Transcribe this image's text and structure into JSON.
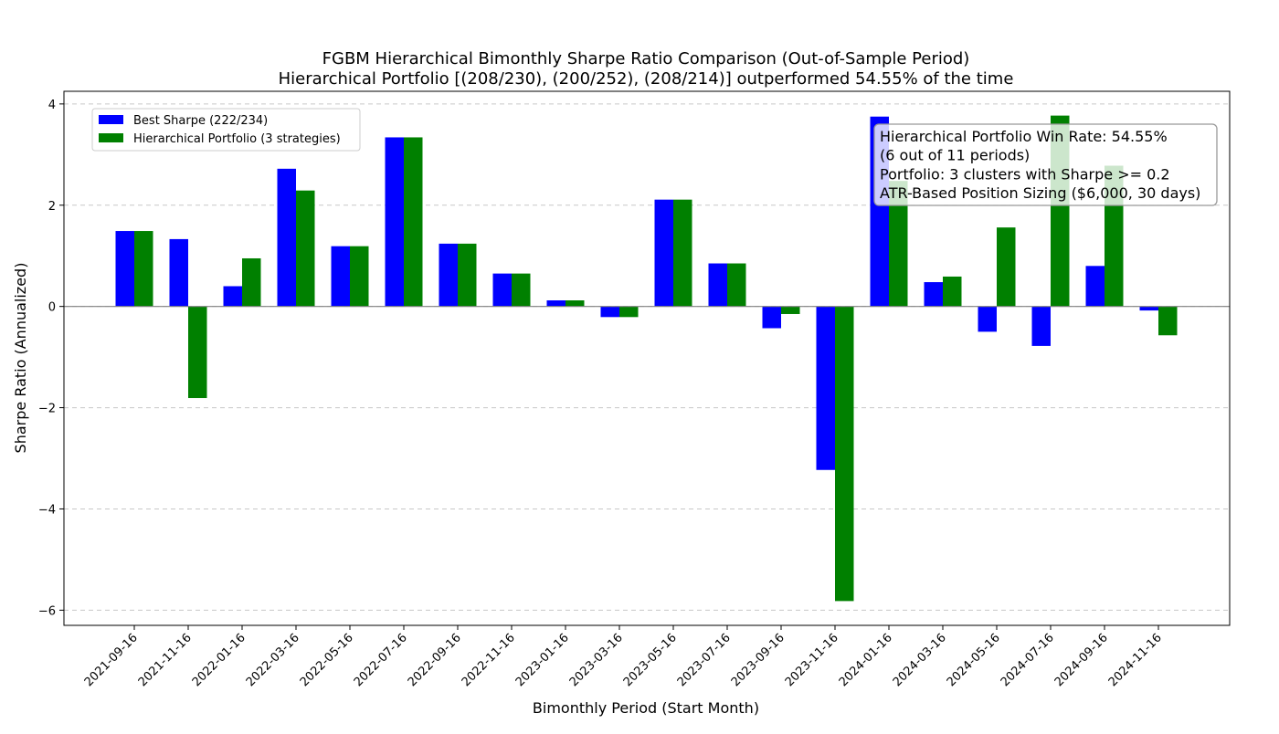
{
  "chart_data": {
    "type": "bar",
    "title": "FGBM Hierarchical Bimonthly Sharpe Ratio Comparison (Out-of-Sample Period)",
    "subtitle": "Hierarchical Portfolio [(208/230), (200/252), (208/214)] outperformed 54.55% of the time",
    "xlabel": "Bimonthly Period (Start Month)",
    "ylabel": "Sharpe Ratio (Annualized)",
    "ylim": [
      -6.3,
      4.25
    ],
    "yticks": [
      -6,
      -4,
      -2,
      0,
      2,
      4
    ],
    "grid": "horizontal-dashed",
    "legend_position": "top-left",
    "categories": [
      "2021-09-16",
      "2021-11-16",
      "2022-01-16",
      "2022-03-16",
      "2022-05-16",
      "2022-07-16",
      "2022-09-16",
      "2022-11-16",
      "2023-01-16",
      "2023-03-16",
      "2023-05-16",
      "2023-07-16",
      "2023-09-16",
      "2023-11-16",
      "2024-01-16",
      "2024-03-16",
      "2024-05-16",
      "2024-07-16",
      "2024-09-16",
      "2024-11-16"
    ],
    "series": [
      {
        "name": "Best Sharpe (222/234)",
        "color": "#0000ff",
        "values": [
          1.49,
          1.33,
          0.4,
          2.72,
          1.19,
          3.34,
          1.24,
          0.65,
          0.12,
          -0.21,
          2.11,
          0.85,
          -0.43,
          -3.23,
          3.75,
          0.48,
          -0.5,
          -0.78,
          0.8,
          -0.08
        ]
      },
      {
        "name": "Hierarchical Portfolio (3 strategies)",
        "color": "#008000",
        "values": [
          1.49,
          -1.81,
          0.95,
          2.29,
          1.19,
          3.34,
          1.24,
          0.65,
          0.12,
          -0.21,
          2.11,
          0.85,
          -0.15,
          -5.82,
          2.48,
          0.59,
          1.56,
          3.77,
          2.78,
          -0.57
        ]
      }
    ],
    "annotation": {
      "lines": [
        "Hierarchical Portfolio Win Rate: 54.55%",
        "(6 out of 11 periods)",
        "Portfolio: 3 clusters with Sharpe >= 0.2",
        "ATR-Based Position Sizing ($6,000, 30 days)"
      ]
    }
  }
}
